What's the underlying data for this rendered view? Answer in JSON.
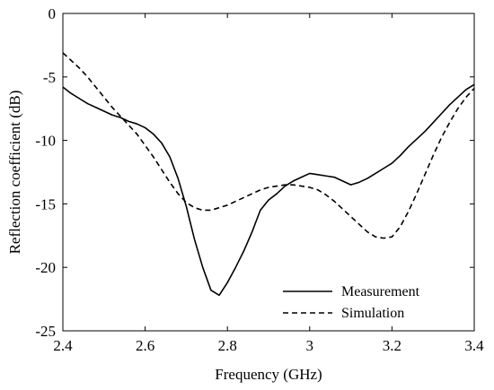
{
  "chart_data": {
    "type": "line",
    "title": "",
    "xlabel": "Frequency (GHz)",
    "ylabel": "Reflection coefficient (dB)",
    "xlim": [
      2.4,
      3.4
    ],
    "ylim": [
      -25,
      0
    ],
    "xticks": [
      "2.4",
      "2.6",
      "2.8",
      "3",
      "3.2",
      "3.4"
    ],
    "yticks": [
      "0",
      "-5",
      "-10",
      "-15",
      "-20",
      "-25"
    ],
    "grid": false,
    "legend_position": "bottom-right",
    "series": [
      {
        "name": "Measurement",
        "line_style": "solid",
        "color": "#000000",
        "x": [
          2.4,
          2.42,
          2.44,
          2.46,
          2.48,
          2.5,
          2.52,
          2.54,
          2.56,
          2.58,
          2.6,
          2.62,
          2.64,
          2.66,
          2.68,
          2.7,
          2.72,
          2.74,
          2.76,
          2.78,
          2.8,
          2.82,
          2.84,
          2.86,
          2.88,
          2.9,
          2.92,
          2.94,
          2.96,
          2.98,
          3.0,
          3.02,
          3.04,
          3.06,
          3.08,
          3.1,
          3.12,
          3.14,
          3.16,
          3.18,
          3.2,
          3.22,
          3.24,
          3.26,
          3.28,
          3.3,
          3.32,
          3.34,
          3.36,
          3.38,
          3.4
        ],
        "y": [
          -5.8,
          -6.3,
          -6.7,
          -7.1,
          -7.4,
          -7.7,
          -8.0,
          -8.2,
          -8.5,
          -8.7,
          -9.0,
          -9.5,
          -10.2,
          -11.3,
          -13.0,
          -15.2,
          -17.8,
          -20.0,
          -21.8,
          -22.2,
          -21.2,
          -20.0,
          -18.7,
          -17.2,
          -15.5,
          -14.7,
          -14.2,
          -13.6,
          -13.2,
          -12.9,
          -12.6,
          -12.7,
          -12.8,
          -12.9,
          -13.2,
          -13.5,
          -13.3,
          -13.0,
          -12.6,
          -12.2,
          -11.8,
          -11.2,
          -10.5,
          -9.9,
          -9.3,
          -8.6,
          -7.9,
          -7.2,
          -6.6,
          -6.0,
          -5.6
        ]
      },
      {
        "name": "Simulation",
        "line_style": "dashed",
        "color": "#000000",
        "x": [
          2.4,
          2.42,
          2.44,
          2.46,
          2.48,
          2.5,
          2.52,
          2.54,
          2.56,
          2.58,
          2.6,
          2.62,
          2.64,
          2.66,
          2.68,
          2.7,
          2.72,
          2.74,
          2.76,
          2.78,
          2.8,
          2.82,
          2.84,
          2.86,
          2.88,
          2.9,
          2.92,
          2.94,
          2.96,
          2.98,
          3.0,
          3.02,
          3.04,
          3.06,
          3.08,
          3.1,
          3.12,
          3.14,
          3.16,
          3.18,
          3.2,
          3.22,
          3.24,
          3.26,
          3.28,
          3.3,
          3.32,
          3.34,
          3.36,
          3.38,
          3.4
        ],
        "y": [
          -3.1,
          -3.7,
          -4.3,
          -5.0,
          -5.8,
          -6.6,
          -7.4,
          -8.1,
          -8.8,
          -9.5,
          -10.4,
          -11.3,
          -12.3,
          -13.3,
          -14.2,
          -14.9,
          -15.3,
          -15.5,
          -15.5,
          -15.3,
          -15.1,
          -14.8,
          -14.5,
          -14.2,
          -13.9,
          -13.7,
          -13.6,
          -13.5,
          -13.5,
          -13.6,
          -13.7,
          -13.9,
          -14.3,
          -14.8,
          -15.4,
          -16.0,
          -16.6,
          -17.2,
          -17.6,
          -17.7,
          -17.6,
          -16.8,
          -15.6,
          -14.2,
          -12.7,
          -11.2,
          -9.8,
          -8.6,
          -7.5,
          -6.6,
          -5.9
        ]
      }
    ]
  }
}
